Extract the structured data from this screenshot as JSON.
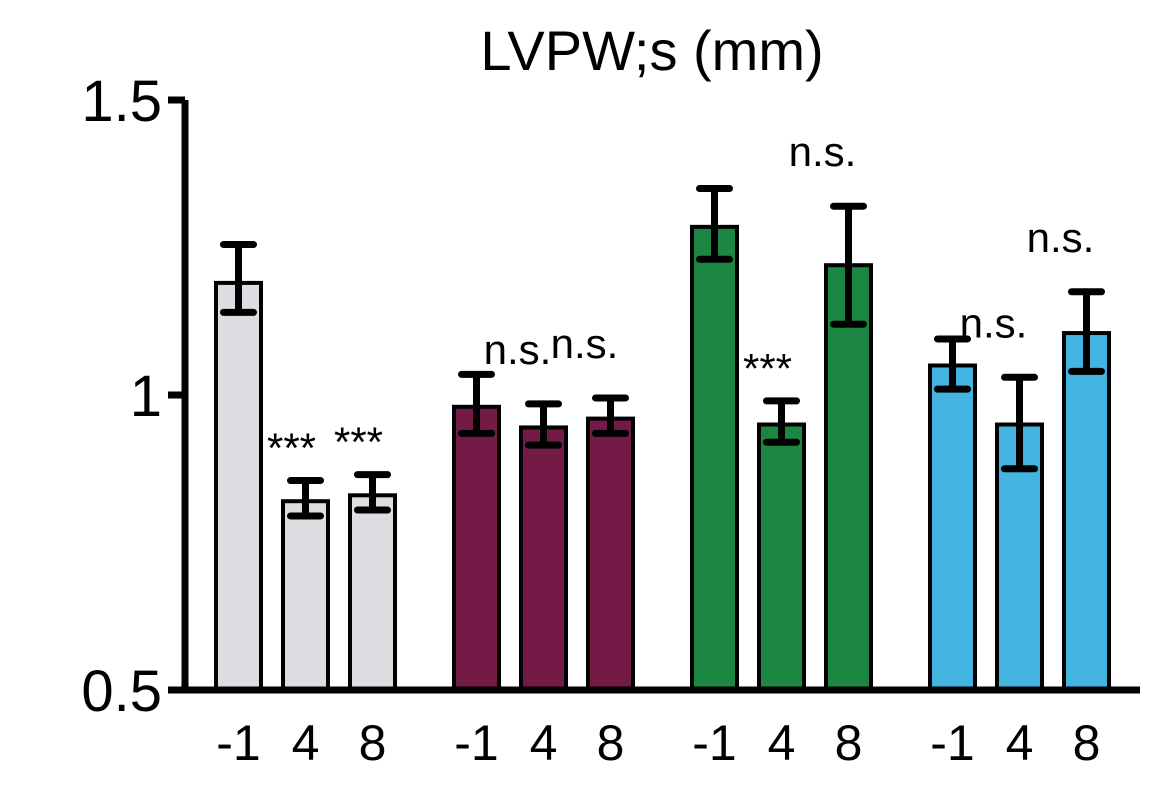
{
  "chart_data": {
    "type": "bar",
    "title": "LVPW;s (mm)",
    "xlabel": "",
    "ylabel": "",
    "ylim": [
      0.5,
      1.5
    ],
    "yticks": [
      {
        "value": 1.5,
        "label": "1.5"
      },
      {
        "value": 1.0,
        "label": "1"
      },
      {
        "value": 0.5,
        "label": "0.5"
      }
    ],
    "grid": false,
    "legend": "none",
    "groups": [
      {
        "color": "#dcdde1",
        "bars": [
          {
            "x": "-1",
            "value": 1.19,
            "err_low": 1.14,
            "err_high": 1.255
          },
          {
            "x": "4",
            "value": 0.82,
            "err_low": 0.795,
            "err_high": 0.855
          },
          {
            "x": "8",
            "value": 0.83,
            "err_low": 0.805,
            "err_high": 0.865
          }
        ],
        "annotations": [
          {
            "text": "***",
            "bar": 1
          },
          {
            "text": "***",
            "bar": 2
          }
        ]
      },
      {
        "color": "#731b46",
        "bars": [
          {
            "x": "-1",
            "value": 0.98,
            "err_low": 0.935,
            "err_high": 1.035
          },
          {
            "x": "4",
            "value": 0.945,
            "err_low": 0.915,
            "err_high": 0.985
          },
          {
            "x": "8",
            "value": 0.96,
            "err_low": 0.935,
            "err_high": 0.995
          }
        ],
        "annotations": [
          {
            "text": "n.s.",
            "bar": 1
          },
          {
            "text": "n.s.",
            "bar": 2
          }
        ]
      },
      {
        "color": "#1c8742",
        "bars": [
          {
            "x": "-1",
            "value": 1.285,
            "err_low": 1.23,
            "err_high": 1.35
          },
          {
            "x": "4",
            "value": 0.95,
            "err_low": 0.92,
            "err_high": 0.99
          },
          {
            "x": "8",
            "value": 1.22,
            "err_low": 1.12,
            "err_high": 1.32
          }
        ],
        "annotations": [
          {
            "text": "***",
            "bar": 1
          },
          {
            "text": "n.s.",
            "bar": 2
          }
        ]
      },
      {
        "color": "#43b3e0",
        "bars": [
          {
            "x": "-1",
            "value": 1.05,
            "err_low": 1.01,
            "err_high": 1.095
          },
          {
            "x": "4",
            "value": 0.95,
            "err_low": 0.875,
            "err_high": 1.03
          },
          {
            "x": "8",
            "value": 1.105,
            "err_low": 1.04,
            "err_high": 1.175
          }
        ],
        "annotations": [
          {
            "text": "n.s.",
            "bar": 1
          },
          {
            "text": "n.s.",
            "bar": 2
          }
        ]
      }
    ]
  }
}
